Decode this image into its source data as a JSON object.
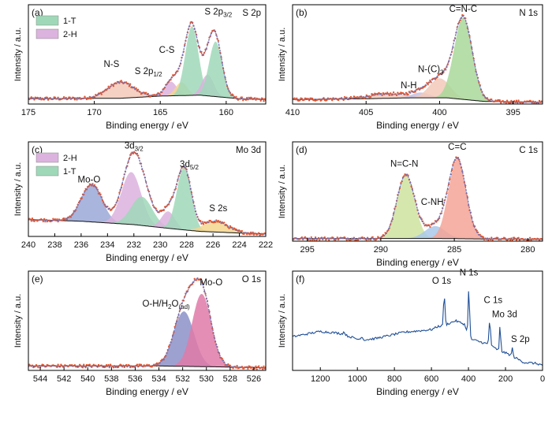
{
  "figure": {
    "panels": [
      {
        "id": "a",
        "label": "(a)",
        "core": "S 2p",
        "xlabel": "Binding energy / eV",
        "ylabel": "Intensity / a.u.",
        "xlim": [
          175,
          157
        ],
        "xticks": [
          175,
          170,
          165,
          160
        ],
        "ylim": [
          0,
          1.12
        ],
        "baseline": [
          [
            175,
            0.06
          ],
          [
            168,
            0.065
          ],
          [
            165,
            0.09
          ],
          [
            162,
            0.1
          ],
          [
            159,
            0.06
          ],
          [
            157,
            0.05
          ]
        ],
        "peaks": [
          {
            "center": 168.0,
            "height": 0.18,
            "sigma": 1.0,
            "color": "#f2c9b8"
          },
          {
            "center": 164.2,
            "height": 0.16,
            "sigma": 0.45,
            "color": "#dcb2de"
          },
          {
            "center": 163.4,
            "height": 0.15,
            "sigma": 0.45,
            "color": "#f5d68e"
          },
          {
            "center": 162.6,
            "height": 0.78,
            "sigma": 0.5,
            "color": "#9fd8b8"
          },
          {
            "center": 161.4,
            "height": 0.24,
            "sigma": 0.45,
            "color": "#dcb2de"
          },
          {
            "center": 160.8,
            "height": 0.62,
            "sigma": 0.5,
            "color": "#9fd8b8"
          }
        ],
        "labels": [
          {
            "text": "N-S",
            "x": 168.7,
            "y": 0.42,
            "sub": "",
            "suffix": ""
          },
          {
            "text": "S 2p",
            "x": 165.9,
            "y": 0.34,
            "sub": "1/2",
            "suffix": ""
          },
          {
            "text": "C-S",
            "x": 164.5,
            "y": 0.58,
            "sub": "",
            "suffix": ""
          },
          {
            "text": "S 2p",
            "x": 160.6,
            "y": 1.01,
            "sub": "3/2",
            "suffix": ""
          }
        ],
        "legend": [
          {
            "text": "1-T",
            "color": "#9fd8b8"
          },
          {
            "text": "2-H",
            "color": "#dcb2de"
          }
        ]
      },
      {
        "id": "b",
        "label": "(b)",
        "core": "N 1s",
        "xlabel": "Binding energy / eV",
        "ylabel": "Intensity / a.u.",
        "xlim": [
          410,
          393
        ],
        "xticks": [
          410,
          405,
          400,
          395
        ],
        "ylim": [
          0,
          1.12
        ],
        "baseline": [
          [
            410,
            0.05
          ],
          [
            405,
            0.06
          ],
          [
            402,
            0.07
          ],
          [
            399.5,
            0.07
          ],
          [
            397,
            0.03
          ],
          [
            393,
            0.02
          ]
        ],
        "peaks": [
          {
            "center": 403.5,
            "height": 0.05,
            "sigma": 1.3,
            "color": "#f2c9b8"
          },
          {
            "center": 401.3,
            "height": 0.06,
            "sigma": 0.6,
            "color": "#c6c0e4"
          },
          {
            "center": 400.0,
            "height": 0.22,
            "sigma": 0.7,
            "color": "#f2c9b8"
          },
          {
            "center": 398.4,
            "height": 0.92,
            "sigma": 0.62,
            "color": "#a8d89a"
          }
        ],
        "labels": [
          {
            "text": "N-H",
            "x": 402.1,
            "y": 0.18,
            "sub": "",
            "suffix": ""
          },
          {
            "text": "N-(C)",
            "x": 400.6,
            "y": 0.36,
            "sub": "3",
            "suffix": ""
          },
          {
            "text": "C=N-C",
            "x": 398.4,
            "y": 1.04,
            "sub": "",
            "suffix": ""
          }
        ],
        "legend": []
      },
      {
        "id": "c",
        "label": "(c)",
        "core": "Mo 3d",
        "xlabel": "Binding energy / eV",
        "ylabel": "Intensity / a.u.",
        "xlim": [
          240,
          222
        ],
        "xticks": [
          240,
          238,
          236,
          234,
          232,
          230,
          228,
          226,
          224,
          222
        ],
        "ylim": [
          0,
          1.12
        ],
        "baseline": [
          [
            240,
            0.2
          ],
          [
            236,
            0.18
          ],
          [
            232,
            0.14
          ],
          [
            229,
            0.09
          ],
          [
            227,
            0.06
          ],
          [
            224,
            0.04
          ],
          [
            222,
            0.03
          ]
        ],
        "peaks": [
          {
            "center": 235.2,
            "height": 0.44,
            "sigma": 0.8,
            "color": "#9aa8d6"
          },
          {
            "center": 232.2,
            "height": 0.62,
            "sigma": 0.75,
            "color": "#dcb2de"
          },
          {
            "center": 231.4,
            "height": 0.34,
            "sigma": 0.8,
            "color": "#9fd8b8"
          },
          {
            "center": 229.4,
            "height": 0.2,
            "sigma": 0.5,
            "color": "#dcb2de"
          },
          {
            "center": 228.2,
            "height": 0.74,
            "sigma": 0.55,
            "color": "#9fd8b8"
          },
          {
            "center": 225.8,
            "height": 0.13,
            "sigma": 0.9,
            "color": "#f5d68e"
          }
        ],
        "labels": [
          {
            "text": "Mo-O",
            "x": 235.4,
            "y": 0.64,
            "sub": "",
            "suffix": ""
          },
          {
            "text": "3d",
            "x": 232.0,
            "y": 1.04,
            "sub": "3/2",
            "suffix": ""
          },
          {
            "text": "3d",
            "x": 227.8,
            "y": 0.82,
            "sub": "5/2",
            "suffix": ""
          },
          {
            "text": "S 2s",
            "x": 225.6,
            "y": 0.3,
            "sub": "",
            "suffix": ""
          }
        ],
        "legend": [
          {
            "text": "2-H",
            "color": "#dcb2de"
          },
          {
            "text": "1-T",
            "color": "#9fd8b8"
          }
        ]
      },
      {
        "id": "d",
        "label": "(d)",
        "core": "C 1s",
        "xlabel": "Binding energy / eV",
        "ylabel": "Intensity / a.u.",
        "xlim": [
          296,
          279
        ],
        "xticks": [
          295,
          290,
          285,
          280
        ],
        "ylim": [
          0,
          1.12
        ],
        "baseline": [
          [
            296,
            0.03
          ],
          [
            290,
            0.03
          ],
          [
            286,
            0.03
          ],
          [
            283,
            0.025
          ],
          [
            279,
            0.02
          ]
        ],
        "peaks": [
          {
            "center": 288.3,
            "height": 0.72,
            "sigma": 0.6,
            "color": "#cfe3a0"
          },
          {
            "center": 286.3,
            "height": 0.14,
            "sigma": 0.7,
            "color": "#a9c8ea"
          },
          {
            "center": 284.8,
            "height": 0.9,
            "sigma": 0.6,
            "color": "#f5a596"
          }
        ],
        "labels": [
          {
            "text": "N=C-N",
            "x": 288.4,
            "y": 0.84,
            "sub": "",
            "suffix": ""
          },
          {
            "text": "C-NH",
            "x": 286.5,
            "y": 0.41,
            "sub": "",
            "suffix": ""
          },
          {
            "text": "C=C",
            "x": 284.8,
            "y": 1.03,
            "sub": "",
            "suffix": ""
          }
        ],
        "legend": []
      },
      {
        "id": "e",
        "label": "(e)",
        "core": "O 1s",
        "xlabel": "Binding energy / eV",
        "ylabel": "Intensity / a.u.",
        "xlim": [
          545,
          525
        ],
        "xticks": [
          544,
          542,
          540,
          538,
          536,
          534,
          532,
          530,
          528,
          526
        ],
        "ylim": [
          0,
          1.12
        ],
        "baseline": [
          [
            545,
            0.05
          ],
          [
            534,
            0.05
          ],
          [
            529,
            0.04
          ],
          [
            525,
            0.03
          ]
        ],
        "peaks": [
          {
            "center": 531.9,
            "height": 0.62,
            "sigma": 0.85,
            "color": "#8c91c8"
          },
          {
            "center": 530.4,
            "height": 0.82,
            "sigma": 0.8,
            "color": "#e07aa8"
          }
        ],
        "labels": [
          {
            "text": "O-H/H",
            "x": 533.4,
            "y": 0.72,
            "sub": "2",
            "suffix": "O",
            "sub2": "(ad)"
          },
          {
            "text": "Mo-O",
            "x": 529.6,
            "y": 0.96,
            "sub": "",
            "suffix": ""
          }
        ],
        "legend": []
      },
      {
        "id": "f",
        "label": "(f)",
        "core": "",
        "xlabel": "Binding energy / eV",
        "ylabel": "Intensity / a.u.",
        "xlim": [
          1350,
          0
        ],
        "xticks": [
          1200,
          1000,
          800,
          600,
          400,
          200,
          0
        ],
        "ylim": [
          0,
          1.12
        ],
        "survey": {
          "anchors": [
            [
              1350,
              0.38
            ],
            [
              1200,
              0.44
            ],
            [
              1100,
              0.42
            ],
            [
              980,
              0.34
            ],
            [
              900,
              0.36
            ],
            [
              750,
              0.43
            ],
            [
              600,
              0.46
            ],
            [
              560,
              0.5
            ],
            [
              540,
              0.5
            ],
            [
              470,
              0.56
            ],
            [
              420,
              0.52
            ],
            [
              400,
              0.36
            ],
            [
              300,
              0.3
            ],
            [
              240,
              0.23
            ],
            [
              180,
              0.18
            ],
            [
              100,
              0.09
            ],
            [
              40,
              0.08
            ],
            [
              0,
              0.06
            ]
          ],
          "peaks": [
            [
              531,
              0.34,
              4
            ],
            [
              398,
              0.56,
              4
            ],
            [
              285,
              0.28,
              4
            ],
            [
              229,
              0.3,
              3
            ],
            [
              163,
              0.1,
              3
            ],
            [
              1072,
              0.03,
              6
            ],
            [
              978,
              0.04,
              6
            ]
          ]
        },
        "labels": [
          {
            "text": "O 1s",
            "x": 545,
            "y": 0.98,
            "sub": "",
            "suffix": ""
          },
          {
            "text": "N 1s",
            "x": 398,
            "y": 1.07,
            "sub": "",
            "suffix": ""
          },
          {
            "text": "C 1s",
            "x": 267,
            "y": 0.76,
            "sub": "",
            "suffix": ""
          },
          {
            "text": "Mo 3d",
            "x": 205,
            "y": 0.6,
            "sub": "",
            "suffix": ""
          },
          {
            "text": "S 2p",
            "x": 120,
            "y": 0.32,
            "sub": "",
            "suffix": ""
          }
        ],
        "legend": []
      }
    ],
    "colors": {
      "data_points": "#e2542d",
      "fit": "#6f72b8",
      "baseline": "#111111",
      "survey": "#1f4f96"
    }
  }
}
